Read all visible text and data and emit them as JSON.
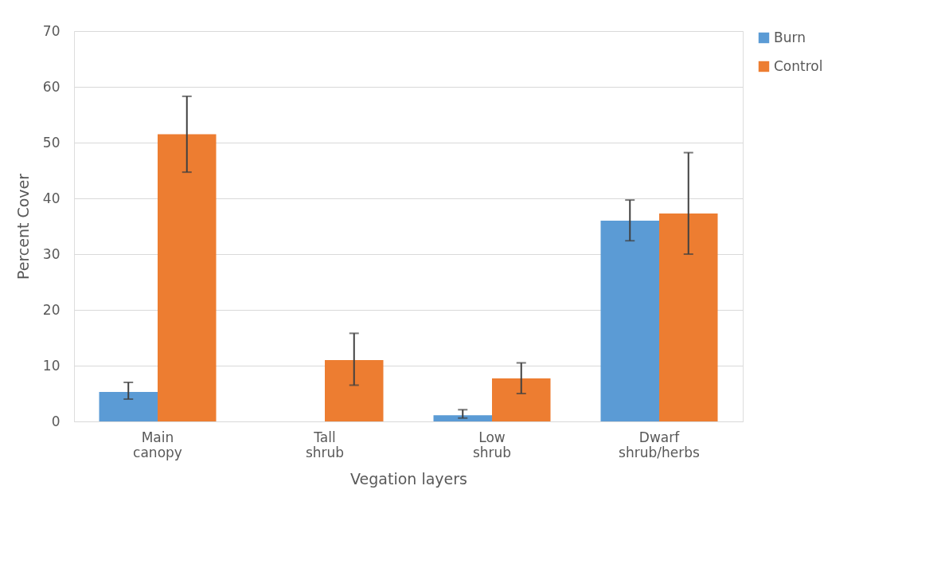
{
  "chart_data": {
    "type": "bar",
    "xlabel": "Vegation layers",
    "ylabel": "Percent Cover",
    "categories": [
      "Main canopy",
      "Tall shrub",
      "Low shrub",
      "Dwarf shrub/herbs"
    ],
    "series": [
      {
        "name": "Burn",
        "color": "#5b9bd5",
        "values": [
          5.3,
          0,
          1.1,
          36.0
        ],
        "errors": [
          [
            4.0,
            7.0
          ],
          null,
          [
            0.6,
            2.1
          ],
          [
            32.4,
            39.7
          ]
        ]
      },
      {
        "name": "Control",
        "color": "#ed7d31",
        "values": [
          51.5,
          11.0,
          7.7,
          37.3
        ],
        "errors": [
          [
            44.7,
            58.3
          ],
          [
            6.5,
            15.8
          ],
          [
            5.0,
            10.5
          ],
          [
            30.0,
            48.2
          ]
        ]
      }
    ],
    "ylim": [
      0,
      70
    ],
    "yticks": [
      0,
      10,
      20,
      30,
      40,
      50,
      60,
      70
    ],
    "grid": "y",
    "legend": "right"
  }
}
